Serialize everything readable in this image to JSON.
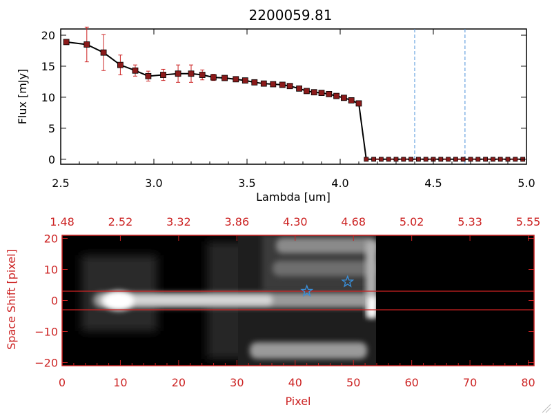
{
  "title": "2200059.81",
  "chart_data": [
    {
      "type": "line",
      "xlabel": "Lambda [um]",
      "ylabel": "Flux [mJy]",
      "xlim": [
        2.5,
        5.0
      ],
      "ylim": [
        -0.8,
        21
      ],
      "xticks": [
        2.5,
        3.0,
        3.5,
        4.0,
        4.5,
        5.0
      ],
      "xtick_labels": [
        "2.5",
        "3.0",
        "3.5",
        "4.0",
        "4.5",
        "5.0"
      ],
      "yticks": [
        0,
        5,
        10,
        15,
        20
      ],
      "ytick_labels": [
        "0",
        "5",
        "10",
        "15",
        "20"
      ],
      "series": [
        {
          "x": [
            2.53,
            2.64,
            2.73,
            2.82,
            2.9,
            2.97,
            3.05,
            3.13,
            3.2,
            3.26,
            3.32,
            3.38,
            3.44,
            3.49,
            3.54,
            3.59,
            3.64,
            3.69,
            3.73,
            3.78,
            3.82,
            3.86,
            3.9,
            3.94,
            3.98,
            4.02,
            4.06,
            4.1
          ],
          "y": [
            18.9,
            18.5,
            17.2,
            15.2,
            14.3,
            13.4,
            13.6,
            13.8,
            13.8,
            13.6,
            13.2,
            13.1,
            12.9,
            12.7,
            12.4,
            12.2,
            12.1,
            12.0,
            11.8,
            11.4,
            11.0,
            10.8,
            10.7,
            10.5,
            10.2,
            9.9,
            9.5,
            9.0
          ],
          "yerr": [
            0.4,
            2.8,
            2.9,
            1.6,
            0.9,
            0.8,
            0.9,
            1.4,
            1.4,
            0.8,
            0.5,
            0.3,
            0.3,
            0.3,
            0.3,
            0.3,
            0.3,
            0.3,
            0.3,
            0.3,
            0.3,
            0.3,
            0.3,
            0.3,
            0.3,
            0.3,
            0.3,
            0.3
          ]
        },
        {
          "x": [
            4.14,
            4.18,
            4.22,
            4.26,
            4.3,
            4.34,
            4.38,
            4.42,
            4.46,
            4.5,
            4.54,
            4.58,
            4.62,
            4.66,
            4.7,
            4.74,
            4.78,
            4.82,
            4.86,
            4.9,
            4.94,
            4.98
          ],
          "y": [
            0,
            0,
            0,
            0,
            0,
            0,
            0,
            0,
            0,
            0,
            0,
            0,
            0,
            0,
            0,
            0,
            0,
            0,
            0,
            0,
            0,
            0
          ]
        }
      ],
      "vlines": [
        4.4,
        4.67
      ],
      "colors": {
        "line": "#000000",
        "marker": "#8b1a1a",
        "error": "#cc2222",
        "vline": "#4a90d9"
      }
    },
    {
      "type": "heatmap",
      "xlabel": "Pixel",
      "ylabel": "Space Shift [pixel]",
      "xlim": [
        0,
        81
      ],
      "ylim": [
        -21,
        21
      ],
      "xticks": [
        0,
        10,
        20,
        30,
        40,
        50,
        60,
        70,
        80
      ],
      "xtick_labels": [
        "0",
        "10",
        "20",
        "30",
        "40",
        "50",
        "60",
        "70",
        "80"
      ],
      "yticks": [
        -20,
        -10,
        0,
        10,
        20
      ],
      "ytick_labels": [
        "−20",
        "−10",
        "0",
        "10",
        "20"
      ],
      "top_axis_tick_labels": [
        "1.48",
        "2.52",
        "3.32",
        "3.86",
        "4.30",
        "4.68",
        "5.02",
        "5.33",
        "5.55"
      ],
      "hlines": [
        3,
        -3
      ],
      "markers": [
        {
          "x": 42,
          "y": 3
        },
        {
          "x": 49,
          "y": 6
        }
      ],
      "colors": {
        "axis": "#cc2222",
        "marker": "#3a8fd9",
        "hline": "#cc2222"
      }
    }
  ]
}
